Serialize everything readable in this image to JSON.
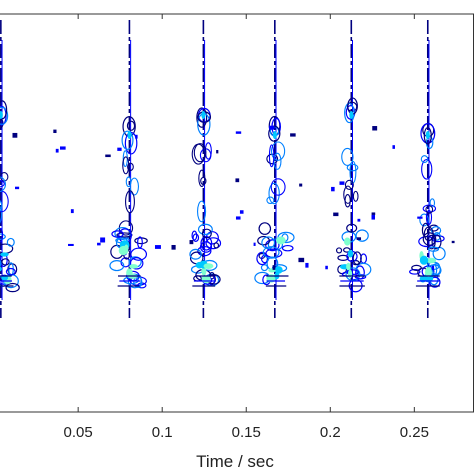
{
  "chart_data": {
    "type": "contour",
    "title": "",
    "xlabel": "Time / sec",
    "ylabel": "",
    "x_ticks": [
      0.05,
      0.1,
      0.15,
      0.2,
      0.25
    ],
    "x_tick_labels": [
      "0.05",
      "0.1",
      "0.15",
      "0.2",
      "0.25"
    ],
    "xlim": [
      0.0035,
      0.2855
    ],
    "grid": false,
    "legend": "none",
    "colormap": [
      "#00007f",
      "#0000ff",
      "#0080ff",
      "#00c8ff",
      "#7fffcf"
    ],
    "bursts": [
      {
        "time": 0.004,
        "level": 3
      },
      {
        "time": 0.0805,
        "level": 3
      },
      {
        "time": 0.1245,
        "level": 3
      },
      {
        "time": 0.167,
        "level": 2
      },
      {
        "time": 0.2125,
        "level": 2
      },
      {
        "time": 0.258,
        "level": 3
      }
    ]
  }
}
